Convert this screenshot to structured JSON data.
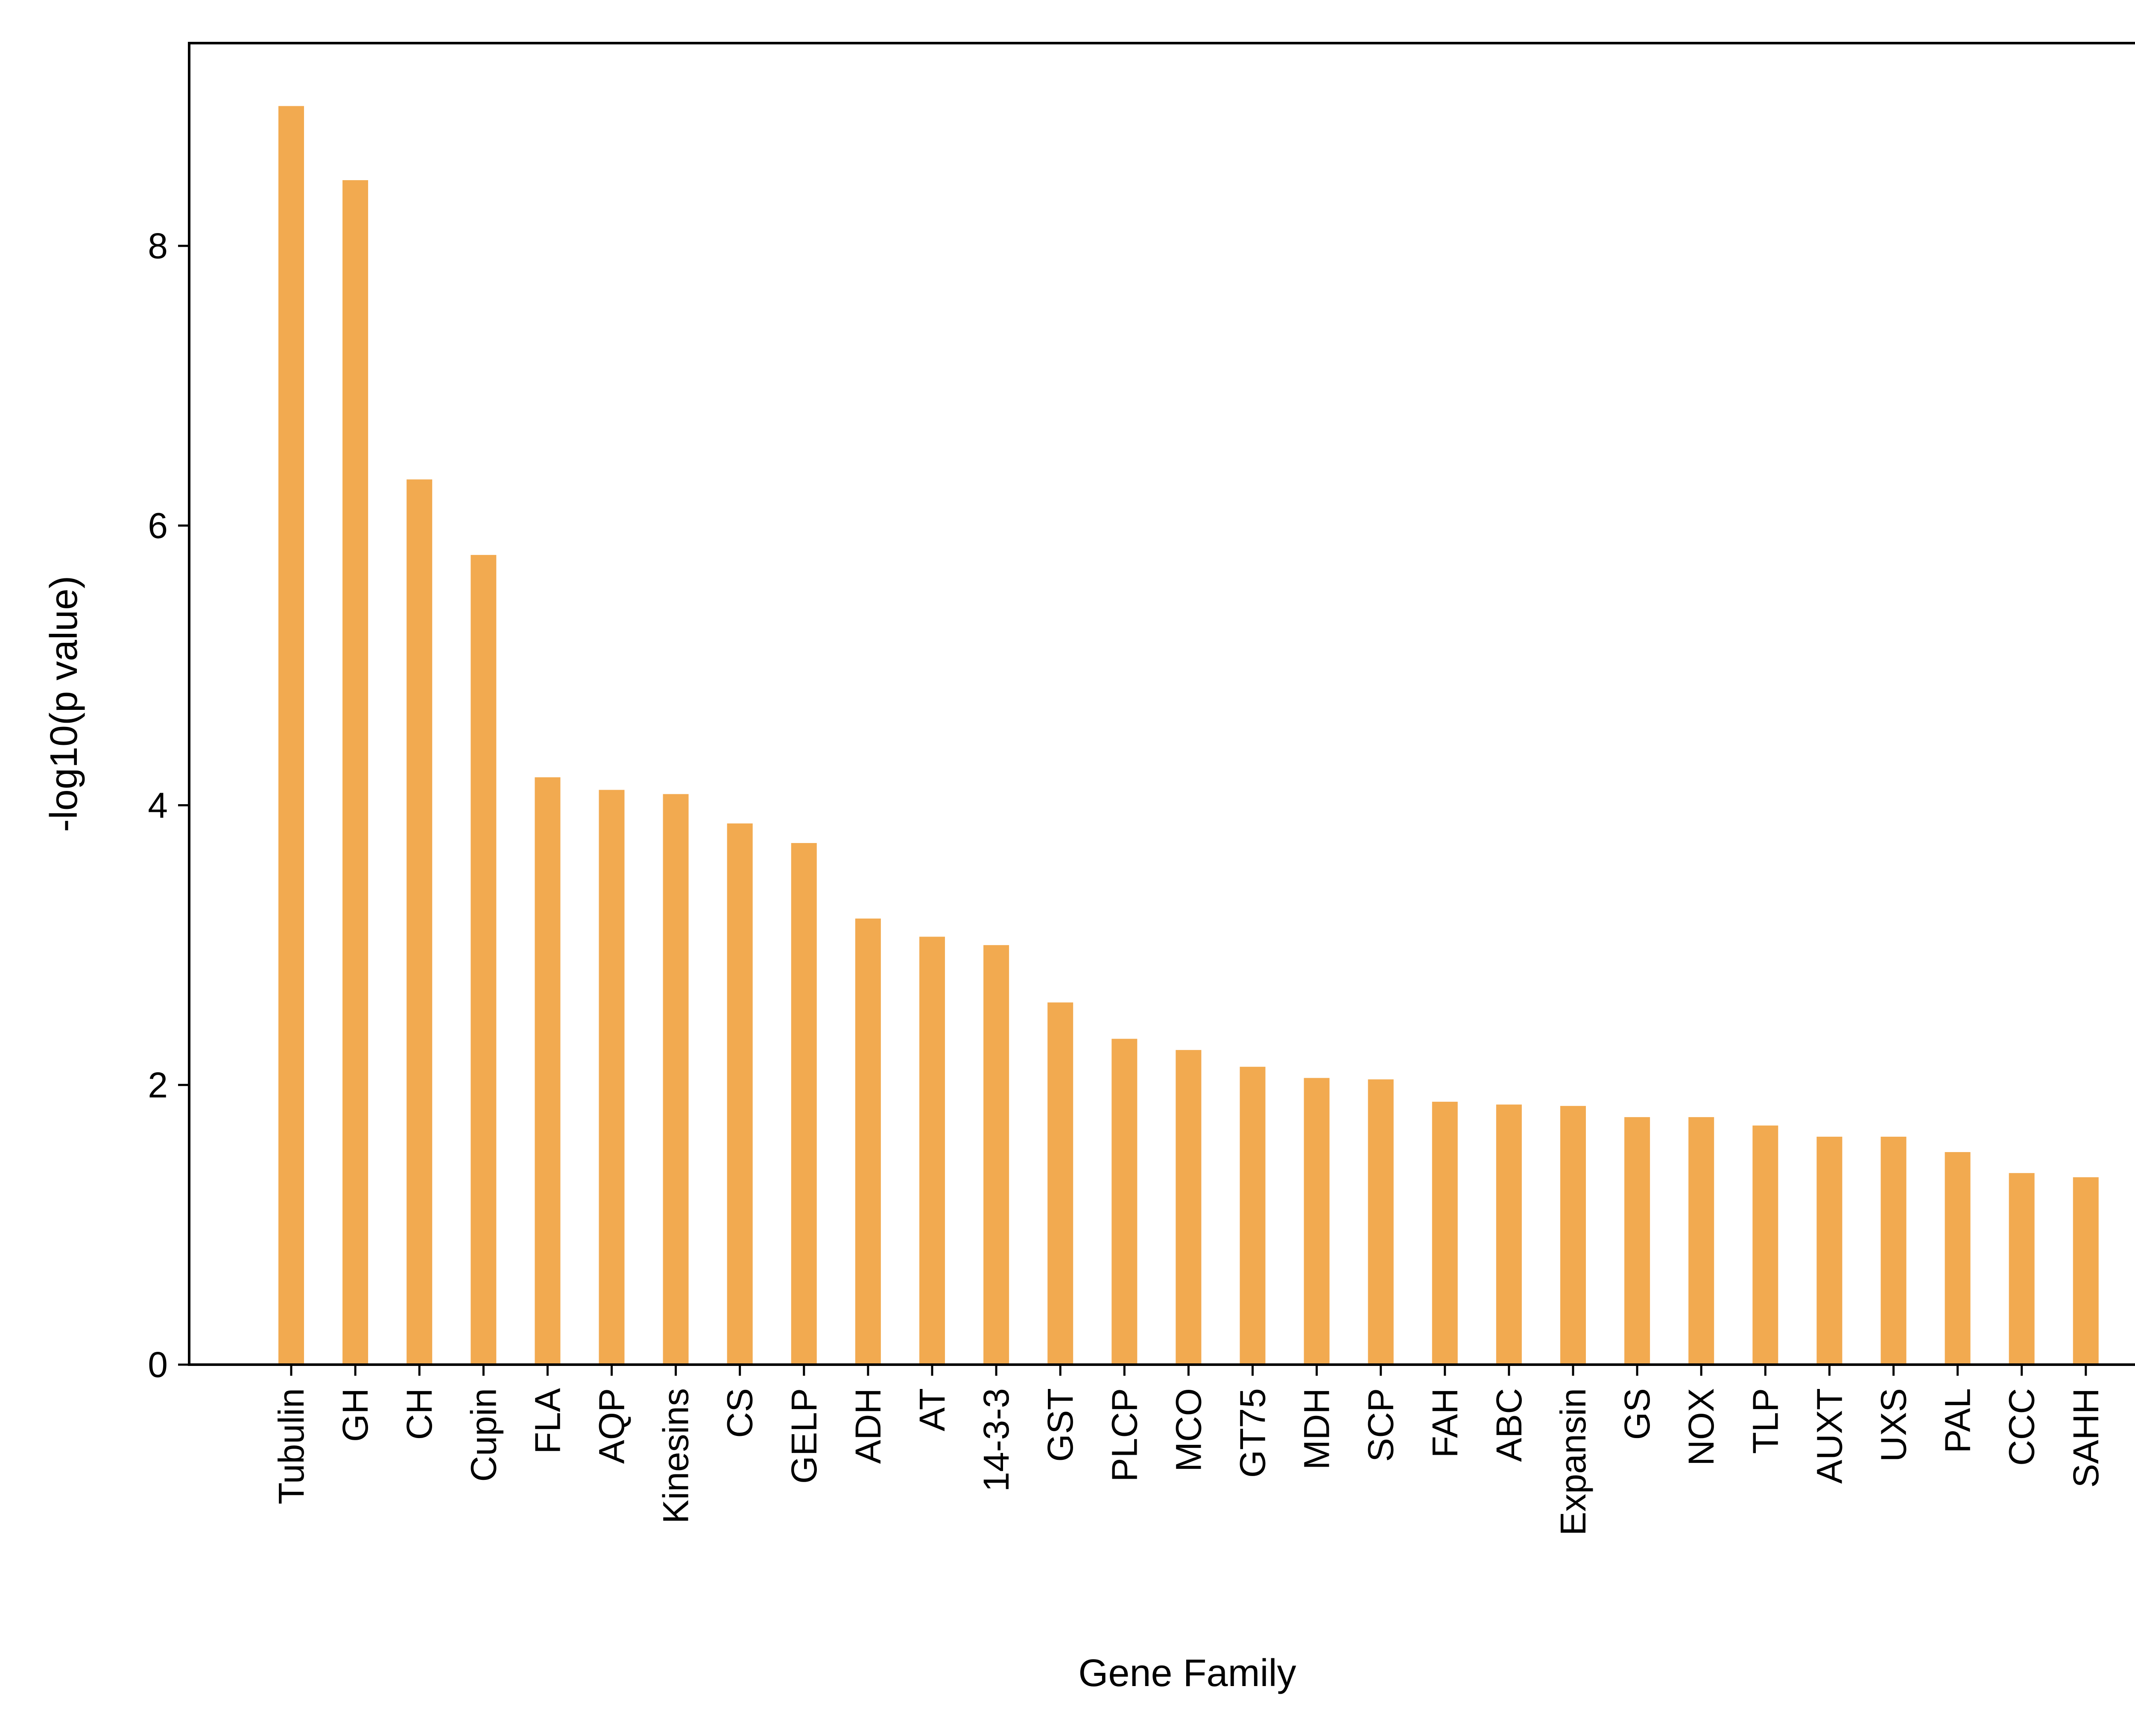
{
  "chart_data": {
    "type": "bar",
    "title": "",
    "xlabel": "Gene Family",
    "ylabel": "-log10(p value)",
    "ylim": [
      0,
      9.45
    ],
    "yticks": [
      0,
      2,
      4,
      6,
      8
    ],
    "grid": false,
    "bar_color": "#F2AA50",
    "categories": [
      "Tubulin",
      "GH",
      "CH",
      "Cupin",
      "FLA",
      "AQP",
      "Kinesins",
      "CS",
      "GELP",
      "ADH",
      "AT",
      "14-3-3",
      "GST",
      "PLCP",
      "MCO",
      "GT75",
      "MDH",
      "SCP",
      "FAH",
      "ABC",
      "Expansin",
      "GS",
      "NOX",
      "TLP",
      "AUXT",
      "UXS",
      "PAL",
      "CCC",
      "SAHH"
    ],
    "values": [
      9.0,
      8.47,
      6.33,
      5.79,
      4.2,
      4.11,
      4.08,
      3.87,
      3.73,
      3.19,
      3.06,
      3.0,
      2.59,
      2.33,
      2.25,
      2.13,
      2.05,
      2.04,
      1.88,
      1.86,
      1.85,
      1.77,
      1.77,
      1.71,
      1.63,
      1.63,
      1.52,
      1.37,
      1.34
    ]
  }
}
